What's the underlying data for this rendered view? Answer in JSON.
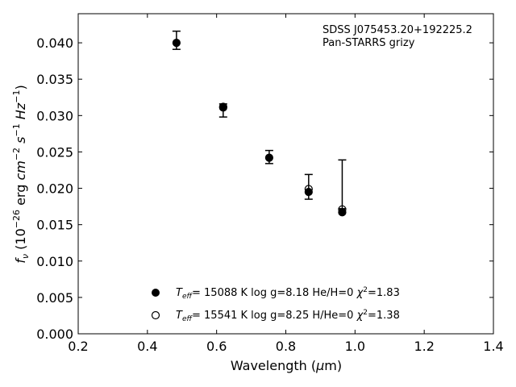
{
  "chart_data": {
    "type": "scatter",
    "title_lines": [
      "SDSS J075453.20+192225.2",
      "Pan-STARRS grizy"
    ],
    "xlabel": "Wavelength (μm)",
    "ylabel": "f_ν (10^-26 erg cm^-2 s^-1 Hz^-1)",
    "xlim": [
      0.2,
      1.4
    ],
    "ylim": [
      0.0,
      0.044
    ],
    "xticks": [
      0.2,
      0.4,
      0.6,
      0.8,
      1.0,
      1.2,
      1.4
    ],
    "xtick_labels": [
      "0.2",
      "0.4",
      "0.6",
      "0.8",
      "1.0",
      "1.2",
      "1.4"
    ],
    "yticks": [
      0.0,
      0.005,
      0.01,
      0.015,
      0.02,
      0.025,
      0.03,
      0.035,
      0.04
    ],
    "ytick_labels": [
      "0.000",
      "0.005",
      "0.010",
      "0.015",
      "0.020",
      "0.025",
      "0.030",
      "0.035",
      "0.040"
    ],
    "grid": false,
    "observed": {
      "x": [
        0.484,
        0.619,
        0.752,
        0.866,
        0.963
      ],
      "y": [
        0.0403,
        0.0312,
        0.0244,
        0.0202,
        0.0172
      ],
      "err_low": [
        0.0391,
        0.0298,
        0.0234,
        0.0185,
        0.0172
      ],
      "err_high": [
        0.0416,
        0.0316,
        0.0252,
        0.0219,
        0.0239
      ]
    },
    "series": [
      {
        "marker": "filled-circle",
        "label_parts": {
          "teff": "= 15088 K  log g=8.18  He/H=0",
          "chi2": "=1.83"
        },
        "x": [
          0.484,
          0.619,
          0.752,
          0.866,
          0.963
        ],
        "y": [
          0.04,
          0.0311,
          0.0242,
          0.0195,
          0.0167
        ]
      },
      {
        "marker": "open-circle",
        "label_parts": {
          "teff": "= 15541 K  log g=8.25  H/He=0",
          "chi2": "=1.38"
        },
        "x": [
          0.619,
          0.866,
          0.963
        ],
        "y": [
          0.0312,
          0.0199,
          0.0171
        ]
      }
    ],
    "legend_position": "bottom-center"
  }
}
